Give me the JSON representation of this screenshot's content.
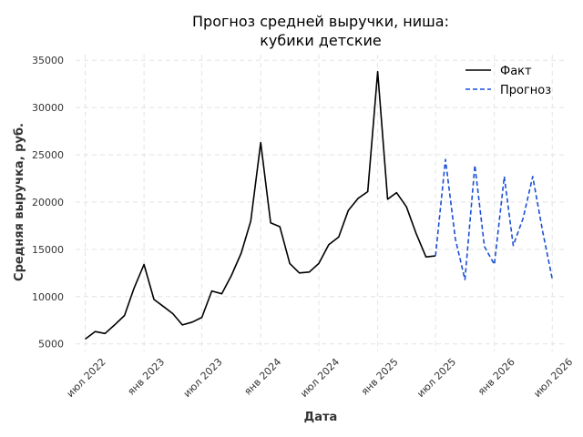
{
  "chart_data": {
    "type": "line",
    "title_line1": "Прогноз средней выручки, ниша:",
    "title_line2": "кубики детские",
    "xlabel": "Дата",
    "ylabel": "Средняя выручка, руб.",
    "ylim": [
      4200,
      35600
    ],
    "xlim": [
      "2022-06-01",
      "2026-08-15"
    ],
    "grid": true,
    "legend_position": "top-right",
    "yticks": [
      5000,
      10000,
      15000,
      20000,
      25000,
      30000,
      35000
    ],
    "ytick_labels": [
      "5000",
      "10000",
      "15000",
      "20000",
      "25000",
      "30000",
      "35000"
    ],
    "xticks": [
      "2022-07-01",
      "2023-01-01",
      "2023-07-01",
      "2024-01-01",
      "2024-07-01",
      "2025-01-01",
      "2025-07-01",
      "2026-01-01",
      "2026-07-01"
    ],
    "xtick_labels": [
      "июл 2022",
      "янв 2023",
      "июл 2023",
      "янв 2024",
      "июл 2024",
      "янв 2025",
      "июл 2025",
      "янв 2026",
      "июл 2026"
    ],
    "series": [
      {
        "name": "Факт",
        "color": "#000000",
        "style": "solid",
        "x": [
          "2022-07-01",
          "2022-08-01",
          "2022-09-01",
          "2022-10-01",
          "2022-11-01",
          "2022-12-01",
          "2023-01-01",
          "2023-02-01",
          "2023-03-01",
          "2023-04-01",
          "2023-05-01",
          "2023-06-01",
          "2023-07-01",
          "2023-08-01",
          "2023-09-01",
          "2023-10-01",
          "2023-11-01",
          "2023-12-01",
          "2024-01-01",
          "2024-02-01",
          "2024-03-01",
          "2024-04-01",
          "2024-05-01",
          "2024-06-01",
          "2024-07-01",
          "2024-08-01",
          "2024-09-01",
          "2024-10-01",
          "2024-11-01",
          "2024-12-01",
          "2025-01-01",
          "2025-02-01",
          "2025-03-01",
          "2025-04-01",
          "2025-05-01",
          "2025-06-01",
          "2025-07-01"
        ],
        "y": [
          5500,
          6300,
          6100,
          7000,
          8000,
          10900,
          13400,
          9700,
          9000,
          8200,
          7000,
          7300,
          7800,
          10600,
          10300,
          12200,
          14600,
          18000,
          26300,
          17800,
          17400,
          13500,
          12500,
          12600,
          13500,
          15500,
          16300,
          19100,
          20400,
          21100,
          33800,
          20300,
          21000,
          19500,
          16700,
          14200,
          14300
        ]
      },
      {
        "name": "Прогноз",
        "color": "#1a4fd6",
        "style": "dashed",
        "x": [
          "2025-07-01",
          "2025-08-01",
          "2025-09-01",
          "2025-10-01",
          "2025-11-01",
          "2025-12-01",
          "2026-01-01",
          "2026-02-01",
          "2026-03-01",
          "2026-04-01",
          "2026-05-01",
          "2026-06-01",
          "2026-07-01"
        ],
        "y": [
          14300,
          24500,
          16100,
          11800,
          23900,
          15300,
          13400,
          22700,
          15400,
          18300,
          22700,
          16900,
          11900
        ]
      }
    ]
  }
}
